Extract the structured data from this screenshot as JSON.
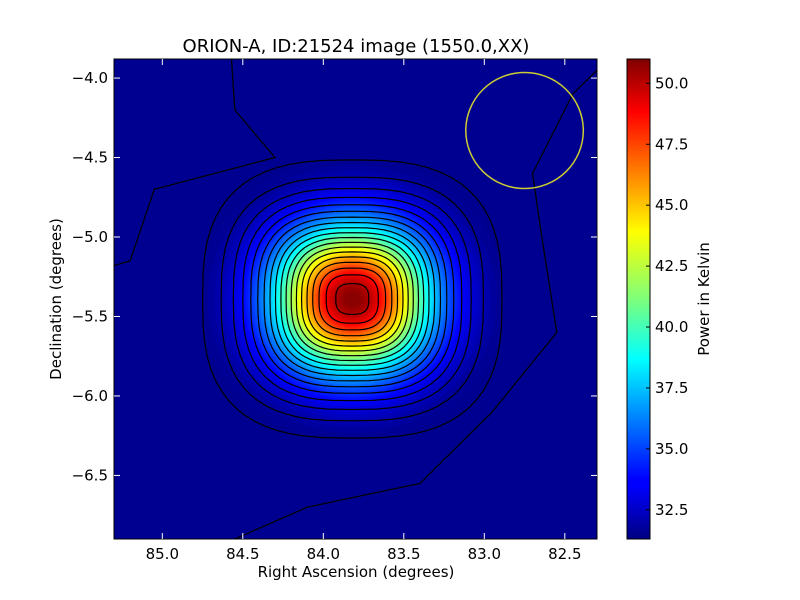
{
  "chart_data": {
    "type": "heatmap",
    "title": "ORION-A, ID:21524 image (1550.0,XX)",
    "xlabel": "Right Ascension (degrees)",
    "ylabel": "Declination (degrees)",
    "colorbar_label": "Power in Kelvin",
    "colormap": "jet",
    "x_inverted": true,
    "xlim": [
      85.3,
      82.3
    ],
    "ylim": [
      -6.9,
      -3.88
    ],
    "x_ticks": [
      {
        "value": 85.0,
        "label": "85.0"
      },
      {
        "value": 84.5,
        "label": "84.5"
      },
      {
        "value": 84.0,
        "label": "84.0"
      },
      {
        "value": 83.5,
        "label": "83.5"
      },
      {
        "value": 83.0,
        "label": "83.0"
      },
      {
        "value": 82.5,
        "label": "82.5"
      }
    ],
    "y_ticks": [
      {
        "value": -4.0,
        "label": "−4.0"
      },
      {
        "value": -4.5,
        "label": "−4.5"
      },
      {
        "value": -5.0,
        "label": "−5.0"
      },
      {
        "value": -5.5,
        "label": "−5.5"
      },
      {
        "value": -6.0,
        "label": "−6.0"
      },
      {
        "value": -6.5,
        "label": "−6.5"
      }
    ],
    "clim": [
      31.3,
      51.0
    ],
    "colorbar_ticks": [
      {
        "value": 32.5,
        "label": "32.5"
      },
      {
        "value": 35.0,
        "label": "35.0"
      },
      {
        "value": 37.5,
        "label": "37.5"
      },
      {
        "value": 40.0,
        "label": "40.0"
      },
      {
        "value": 42.5,
        "label": "42.5"
      },
      {
        "value": 45.0,
        "label": "45.0"
      },
      {
        "value": 47.5,
        "label": "47.5"
      },
      {
        "value": 50.0,
        "label": "50.0"
      }
    ],
    "source": {
      "ra_center": 83.82,
      "dec_center": -5.39,
      "peak": 51.0,
      "background": 31.3,
      "sigma_ra": 0.34,
      "sigma_dec": 0.32
    },
    "contour_levels": [
      32.3,
      33.3,
      34.3,
      35.3,
      36.3,
      37.3,
      38.3,
      39.3,
      40.3,
      41.3,
      42.3,
      43.3,
      44.3,
      45.3,
      46.3,
      47.3,
      48.3,
      49.3,
      50.3
    ],
    "beam": {
      "ra_center": 82.75,
      "dec_center": -4.33,
      "radius_deg": 0.365,
      "color": "#cccc33"
    },
    "colors": {
      "axes": "#000000",
      "contour": "#000000"
    }
  }
}
